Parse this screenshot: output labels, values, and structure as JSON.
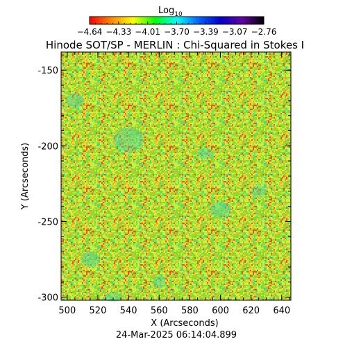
{
  "chart_data": {
    "type": "heatmap",
    "title": "Hinode SOT/SP - MERLIN : Chi-Squared in Stokes I",
    "xlabel": "X (Arcseconds)",
    "ylabel": "Y (Arcseconds)",
    "x_ticks": [
      "500",
      "520",
      "540",
      "560",
      "580",
      "600",
      "620",
      "640"
    ],
    "y_ticks": [
      "-150",
      "-200",
      "-250",
      "-300"
    ],
    "xlim": [
      496,
      646
    ],
    "ylim": [
      -302,
      -138
    ],
    "colorbar": {
      "label_main": "Log",
      "label_sub": "10",
      "tick_labels": [
        "−4.64",
        "−4.33",
        "−4.01",
        "−3.70",
        "−3.39",
        "−3.07",
        "−2.76"
      ],
      "range": [
        -4.64,
        -2.76
      ],
      "colormap": "rainbow reversed (red to black)",
      "colors": [
        "#ff0000",
        "#ff8800",
        "#ffff00",
        "#00ff00",
        "#00ffff",
        "#0066ff",
        "#0000cc",
        "#6600aa",
        "#000000"
      ]
    },
    "field_description": "noisy map dominated by green/yellow values with scattered red and cyan pixels",
    "timestamp": "24-Mar-2025 06:14:04.899"
  }
}
